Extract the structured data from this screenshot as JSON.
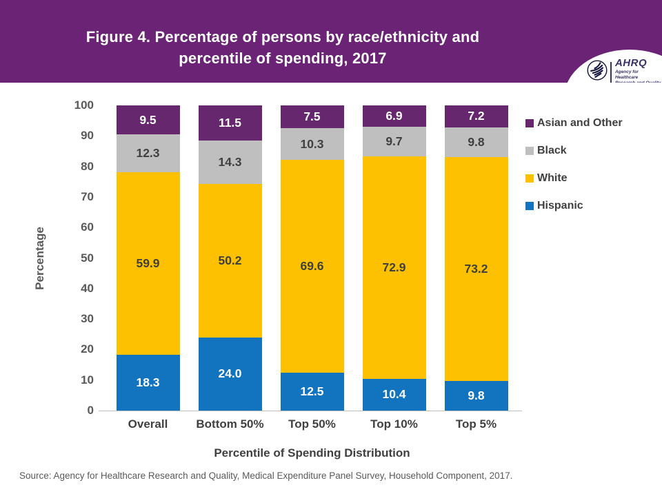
{
  "header": {
    "title_line1": "Figure 4. Percentage of persons by race/ethnicity and",
    "title_line2": "percentile of spending, 2017",
    "bg_color": "#6b2375",
    "logo": {
      "org": "AHRQ",
      "tagline_line1": "Agency for Healthcare",
      "tagline_line2": "Research and Quality"
    }
  },
  "chart_data": {
    "type": "bar",
    "stacked": true,
    "title": "",
    "categories": [
      "Overall",
      "Bottom 50%",
      "Top 50%",
      "Top 10%",
      "Top 5%"
    ],
    "series": [
      {
        "name": "Hispanic",
        "color": "#1273be",
        "label_color": "#ffffff",
        "values": [
          18.3,
          24.0,
          12.5,
          10.4,
          9.8
        ]
      },
      {
        "name": "White",
        "color": "#fdc101",
        "label_color": "#404040",
        "values": [
          59.9,
          50.2,
          69.6,
          72.9,
          73.2
        ]
      },
      {
        "name": "Black",
        "color": "#bfbfbf",
        "label_color": "#404040",
        "values": [
          12.3,
          14.3,
          10.3,
          9.7,
          9.8
        ]
      },
      {
        "name": "Asian and Other",
        "color": "#66276f",
        "label_color": "#ffffff",
        "values": [
          9.5,
          11.5,
          7.5,
          6.9,
          7.2
        ]
      }
    ],
    "ylabel": "Percentage",
    "xlabel": "Percentile of Spending Distribution",
    "ylim": [
      0,
      100
    ],
    "yticks": [
      0,
      10,
      20,
      30,
      40,
      50,
      60,
      70,
      80,
      90,
      100
    ],
    "grid": false,
    "legend_position": "right",
    "legend_order_top_to_bottom": [
      "Asian and Other",
      "Black",
      "White",
      "Hispanic"
    ]
  },
  "footer": {
    "source": "Source: Agency for Healthcare Research and Quality, Medical Expenditure Panel Survey, Household Component, 2017."
  }
}
